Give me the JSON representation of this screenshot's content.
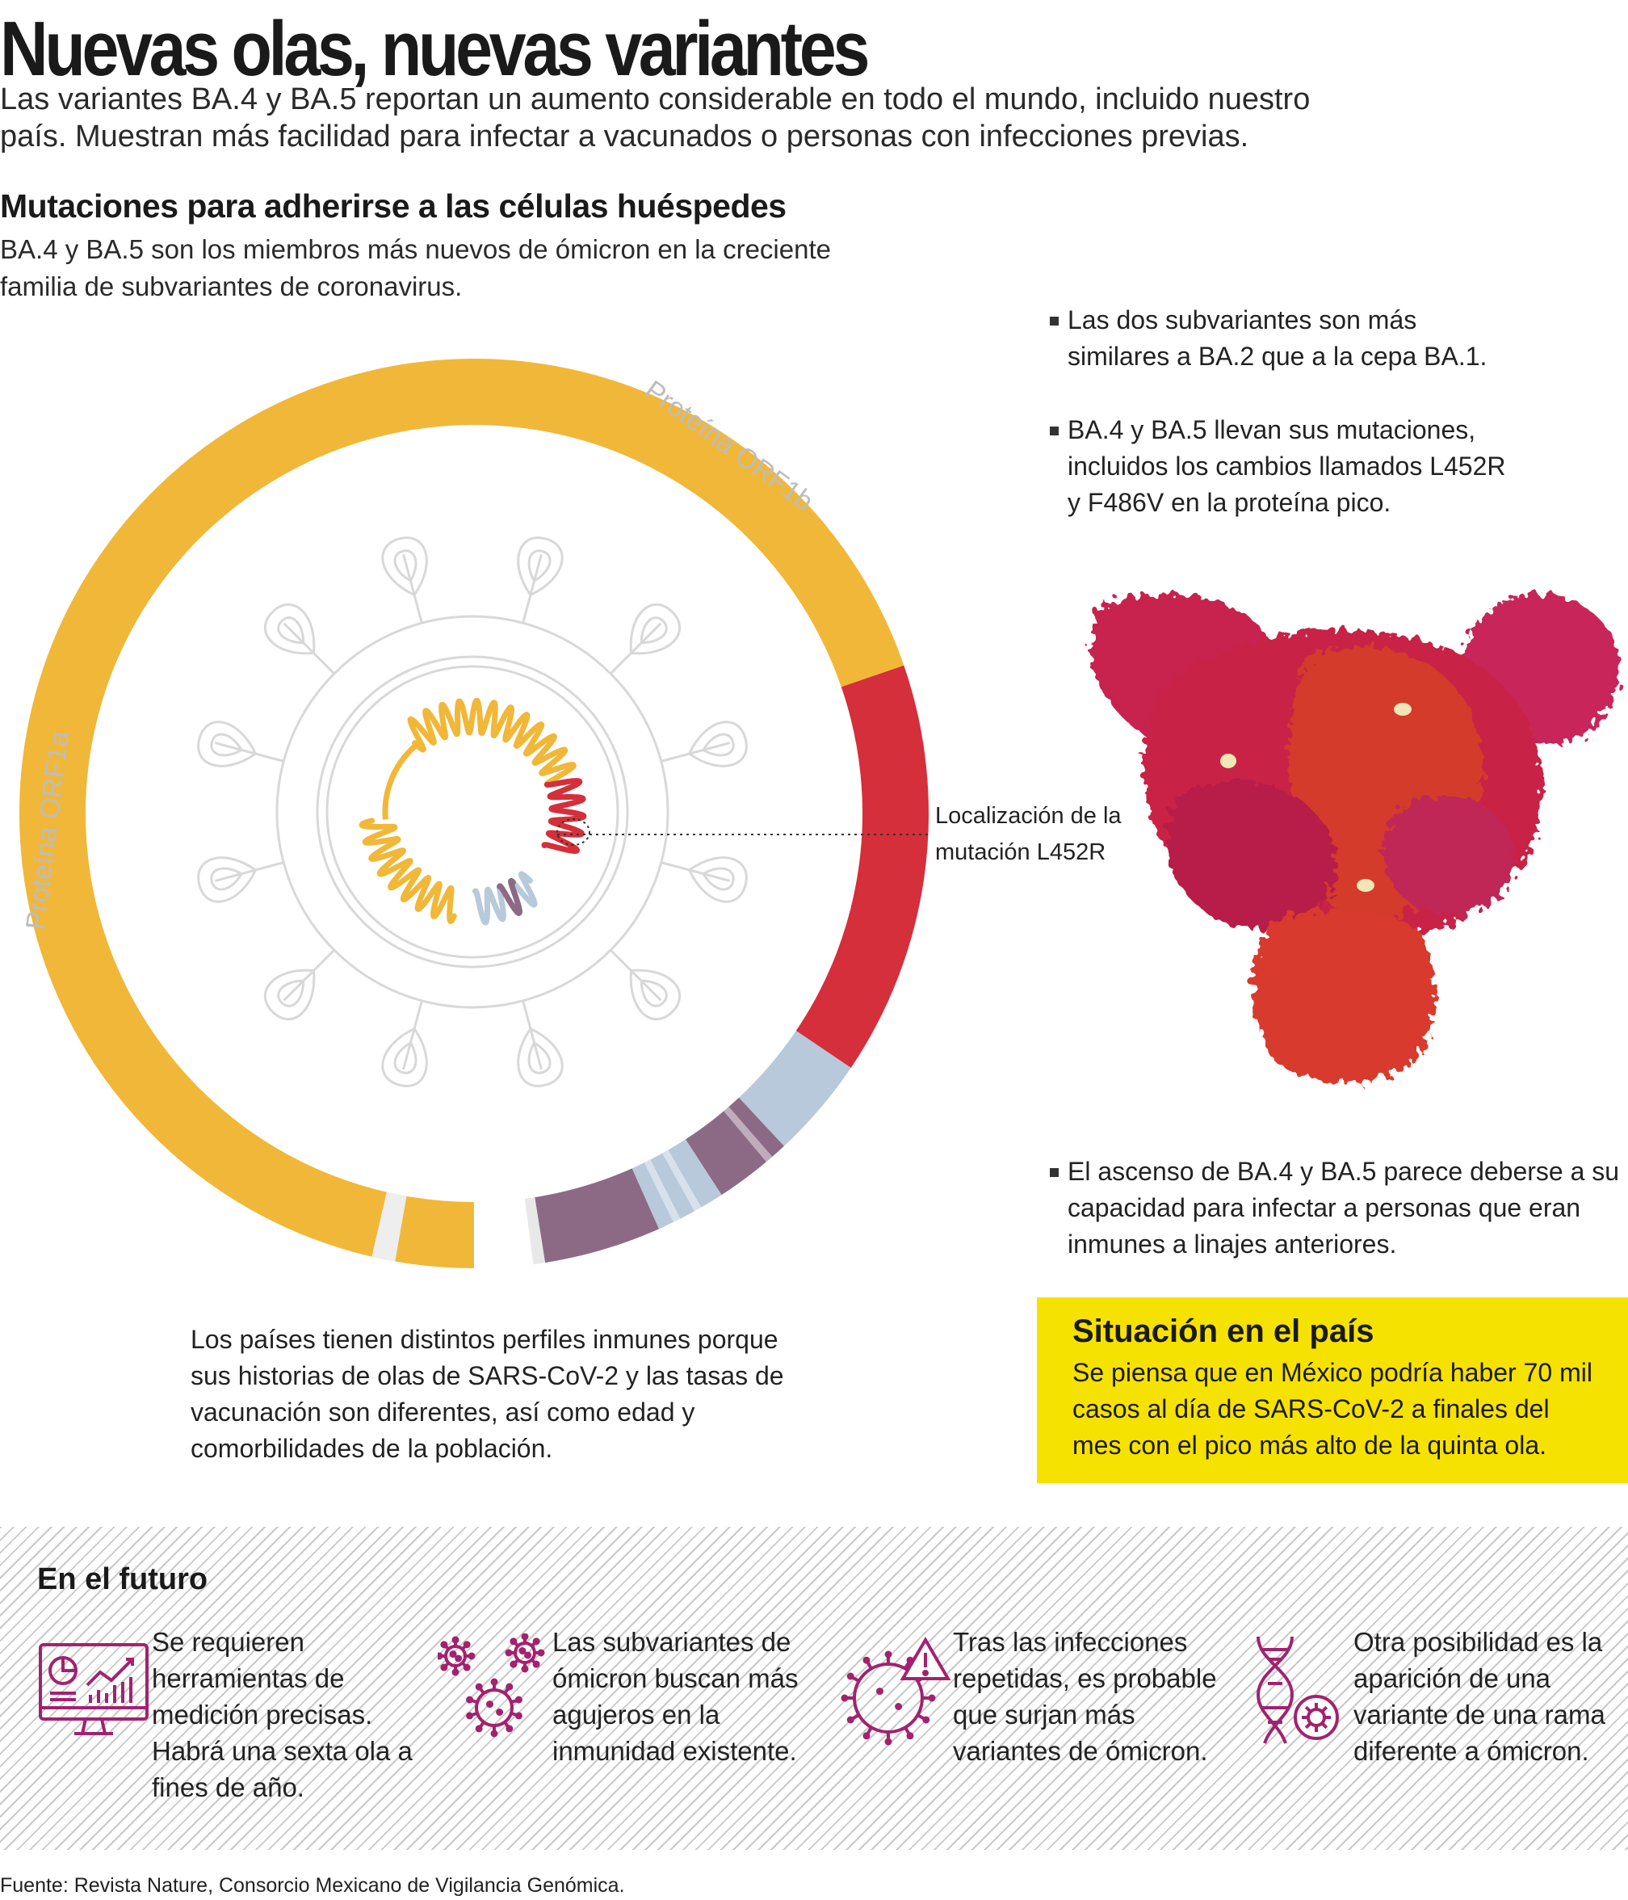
{
  "title": "Nuevas olas, nuevas variantes",
  "intro": "Las variantes BA.4 y BA.5 reportan un aumento considerable en todo el mundo, incluido nuestro país. Muestran más facilidad para infectar a vacunados o personas con infecciones previas.",
  "section": {
    "title": "Mutaciones para adherirse a las células huéspedes",
    "desc": "BA.4 y BA.5 son los miembros más nuevos de ómicron en la creciente familia de subvariantes de coronavirus."
  },
  "diagram": {
    "label_orf1a": "Proteína ORF1a",
    "label_orf1b": "Proteína ORF1b",
    "location_label": "Localización de la mutación L452R",
    "colors": {
      "orf1a": "#f1b738",
      "spike": "#d42f3a",
      "light_blue": "#b7c9da",
      "mauve": "#8c6a85",
      "virus_outline": "#d4d4d4"
    }
  },
  "bullets": [
    "Las dos subvariantes son más similares a BA.2 que a la cepa BA.1.",
    "BA.4 y BA.5 llevan sus mutaciones, incluidos los cambios llamados L452R y F486V en la proteína pico.",
    "El ascenso de BA.4 y BA.5 parece deberse a su capacidad para infectar a personas que eran inmunes a linajes anteriores."
  ],
  "caption": "Los países tienen distintos perfiles inmunes porque sus historias de olas de SARS-CoV-2 y las tasas de vacunación son diferentes, así como edad y comorbilidades de la población.",
  "situation": {
    "title": "Situación en el país",
    "text": "Se piensa que en México podría haber 70 mil casos al día de SARS-CoV-2 a finales del mes con el pico más alto de la quinta ola.",
    "color": "#f6e200"
  },
  "future": {
    "title": "En el futuro",
    "icon_color": "#a2226f",
    "items": [
      {
        "icon": "monitor-chart-icon",
        "text": "Se requieren herramientas de medición precisas. Habrá una sexta ola a fines de año."
      },
      {
        "icon": "virus-cluster-icon",
        "text": "Las subvariantes de ómicron buscan más agujeros en la inmunidad existente."
      },
      {
        "icon": "virus-warning-icon",
        "text": "Tras las infecciones repetidas, es probable que surjan más variantes de ómicron."
      },
      {
        "icon": "dna-virus-icon",
        "text": "Otra posibilidad es la aparición de una variante de una rama diferente a ómicron."
      }
    ]
  },
  "source": "Fuente: Revista Nature, Consorcio Mexicano de Vigilancia Genómica."
}
